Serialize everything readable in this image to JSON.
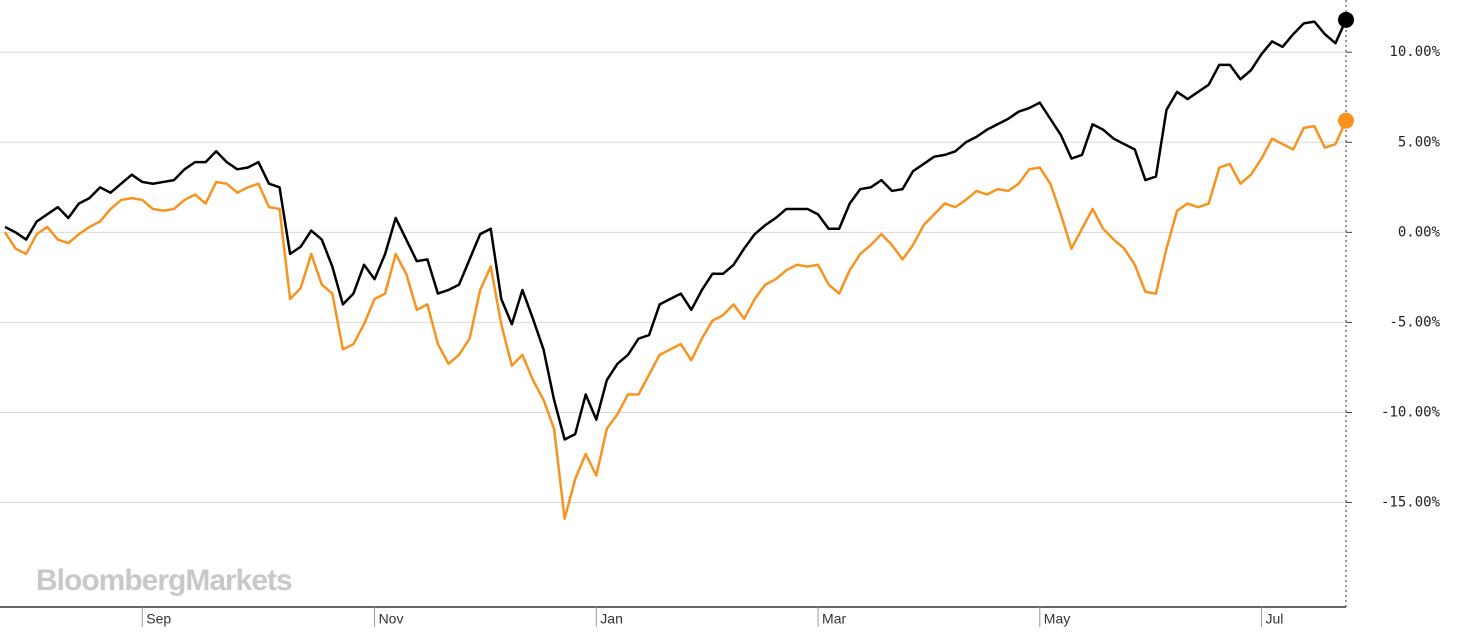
{
  "watermark": "BloombergMarkets",
  "chart_data": {
    "type": "line",
    "categories": [
      null,
      null,
      null,
      null,
      null,
      null,
      null,
      null,
      null,
      null,
      null,
      null,
      null,
      "Sep",
      null,
      null,
      null,
      null,
      null,
      null,
      null,
      null,
      null,
      null,
      null,
      null,
      null,
      null,
      null,
      null,
      null,
      null,
      null,
      null,
      null,
      "Nov",
      null,
      null,
      null,
      null,
      null,
      null,
      null,
      null,
      null,
      null,
      null,
      null,
      null,
      null,
      null,
      null,
      null,
      null,
      null,
      null,
      "Jan",
      null,
      null,
      null,
      null,
      null,
      null,
      null,
      null,
      null,
      null,
      null,
      null,
      null,
      null,
      null,
      null,
      null,
      null,
      null,
      null,
      "Mar",
      null,
      null,
      null,
      null,
      null,
      null,
      null,
      null,
      null,
      null,
      null,
      null,
      null,
      null,
      null,
      null,
      null,
      null,
      null,
      null,
      "May",
      null,
      null,
      null,
      null,
      null,
      null,
      null,
      null,
      null,
      null,
      null,
      null,
      null,
      null,
      null,
      null,
      null,
      null,
      null,
      null,
      "Jul",
      null,
      null,
      null,
      null,
      null,
      null,
      null,
      null
    ],
    "series": [
      {
        "color": "#000000",
        "values": [
          0.3,
          0,
          -0.4,
          0.6,
          1.0,
          1.4,
          0.8,
          1.6,
          1.9,
          2.5,
          2.2,
          2.7,
          3.2,
          2.8,
          2.7,
          2.8,
          2.9,
          3.5,
          3.9,
          3.9,
          4.5,
          3.9,
          3.5,
          3.6,
          3.9,
          2.7,
          2.5,
          -1.2,
          -0.8,
          0.1,
          -0.4,
          -1.9,
          -4.0,
          -3.4,
          -1.8,
          -2.6,
          -1.2,
          0.8,
          -0.4,
          -1.6,
          -1.5,
          -3.4,
          -3.2,
          -2.9,
          -1.5,
          -0.1,
          0.2,
          -3.7,
          -5.1,
          -3.2,
          -4.8,
          -6.5,
          -9.3,
          -11.5,
          -11.2,
          -9.0,
          -10.4,
          -8.2,
          -7.3,
          -6.8,
          -5.9,
          -5.7,
          -4.0,
          -3.7,
          -3.4,
          -4.3,
          -3.2,
          -2.3,
          -2.3,
          -1.8,
          -0.9,
          -0.1,
          0.4,
          0.8,
          1.3,
          1.3,
          1.3,
          1.0,
          0.2,
          0.2,
          1.6,
          2.4,
          2.5,
          2.9,
          2.3,
          2.4,
          3.4,
          3.8,
          4.2,
          4.3,
          4.5,
          5.0,
          5.3,
          5.7,
          6.0,
          6.3,
          6.7,
          6.9,
          7.2,
          6.3,
          5.4,
          4.1,
          4.3,
          6.0,
          5.7,
          5.2,
          4.9,
          4.6,
          2.9,
          3.1,
          6.8,
          7.8,
          7.4,
          7.8,
          8.2,
          9.3,
          9.3,
          8.5,
          9.0,
          9.9,
          10.6,
          10.3,
          11.0,
          11.6,
          11.7,
          11.0,
          10.5,
          11.8
        ]
      },
      {
        "color": "#f7931e",
        "values": [
          0,
          -0.9,
          -1.2,
          -0.1,
          0.3,
          -0.4,
          -0.6,
          -0.1,
          0.3,
          0.6,
          1.3,
          1.8,
          1.9,
          1.8,
          1.3,
          1.2,
          1.3,
          1.8,
          2.1,
          1.6,
          2.8,
          2.7,
          2.2,
          2.5,
          2.7,
          1.4,
          1.3,
          -3.7,
          -3.1,
          -1.2,
          -2.9,
          -3.4,
          -6.5,
          -6.2,
          -5.1,
          -3.7,
          -3.4,
          -1.2,
          -2.3,
          -4.3,
          -4.0,
          -6.2,
          -7.3,
          -6.8,
          -5.9,
          -3.2,
          -1.9,
          -5.1,
          -7.4,
          -6.8,
          -8.2,
          -9.3,
          -10.9,
          -15.9,
          -13.7,
          -12.3,
          -13.5,
          -10.9,
          -10.1,
          -9.0,
          -9.0,
          -7.9,
          -6.8,
          -6.5,
          -6.2,
          -7.1,
          -5.9,
          -4.9,
          -4.6,
          -4.0,
          -4.8,
          -3.7,
          -2.9,
          -2.6,
          -2.1,
          -1.8,
          -1.9,
          -1.8,
          -2.9,
          -3.4,
          -2.1,
          -1.2,
          -0.7,
          -0.1,
          -0.7,
          -1.5,
          -0.7,
          0.4,
          1.0,
          1.6,
          1.4,
          1.8,
          2.3,
          2.1,
          2.4,
          2.3,
          2.7,
          3.5,
          3.6,
          2.7,
          1.0,
          -0.9,
          0.2,
          1.3,
          0.2,
          -0.4,
          -0.9,
          -1.8,
          -3.3,
          -3.4,
          -0.9,
          1.2,
          1.6,
          1.4,
          1.6,
          3.6,
          3.8,
          2.7,
          3.2,
          4.1,
          5.2,
          4.9,
          4.6,
          5.8,
          5.9,
          4.7,
          4.9,
          6.2
        ]
      }
    ],
    "ylim": [
      -20.8,
      12.9
    ],
    "yticks": [
      {
        "value": -15,
        "label": "-15.00%"
      },
      {
        "value": -10,
        "label": "-10.00%"
      },
      {
        "value": -5,
        "label": "-5.00%"
      },
      {
        "value": 0,
        "label": "0.00%"
      },
      {
        "value": 5,
        "label": "5.00%"
      },
      {
        "value": 10,
        "label": "10.00%"
      }
    ],
    "grid": true
  }
}
